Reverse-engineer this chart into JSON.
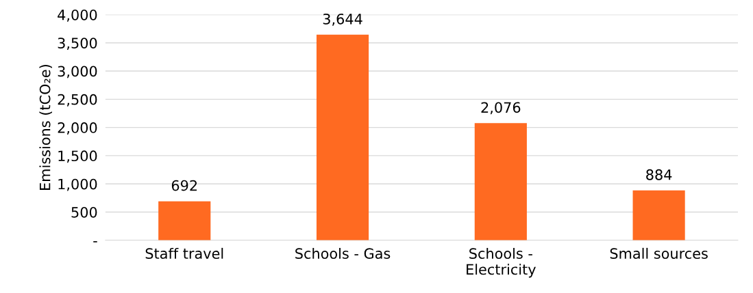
{
  "chart_data": {
    "type": "bar",
    "ylabel": "Emissions (tCO₂e)",
    "categories": [
      "Staff travel",
      "Schools - Gas",
      "Schools - Electricity",
      "Small sources"
    ],
    "values": [
      692,
      3644,
      2076,
      884
    ],
    "value_labels": [
      "692",
      "3,644",
      "2,076",
      "884"
    ],
    "color": "#ff6a21",
    "ylim": [
      0,
      4000
    ],
    "yticks": [
      {
        "value": 0,
        "label": "-"
      },
      {
        "value": 500,
        "label": "500"
      },
      {
        "value": 1000,
        "label": "1,000"
      },
      {
        "value": 1500,
        "label": "1,500"
      },
      {
        "value": 2000,
        "label": "2,000"
      },
      {
        "value": 2500,
        "label": "2,500"
      },
      {
        "value": 3000,
        "label": "3,000"
      },
      {
        "value": 3500,
        "label": "3,500"
      },
      {
        "value": 4000,
        "label": "4,000"
      }
    ],
    "grid": "y"
  }
}
